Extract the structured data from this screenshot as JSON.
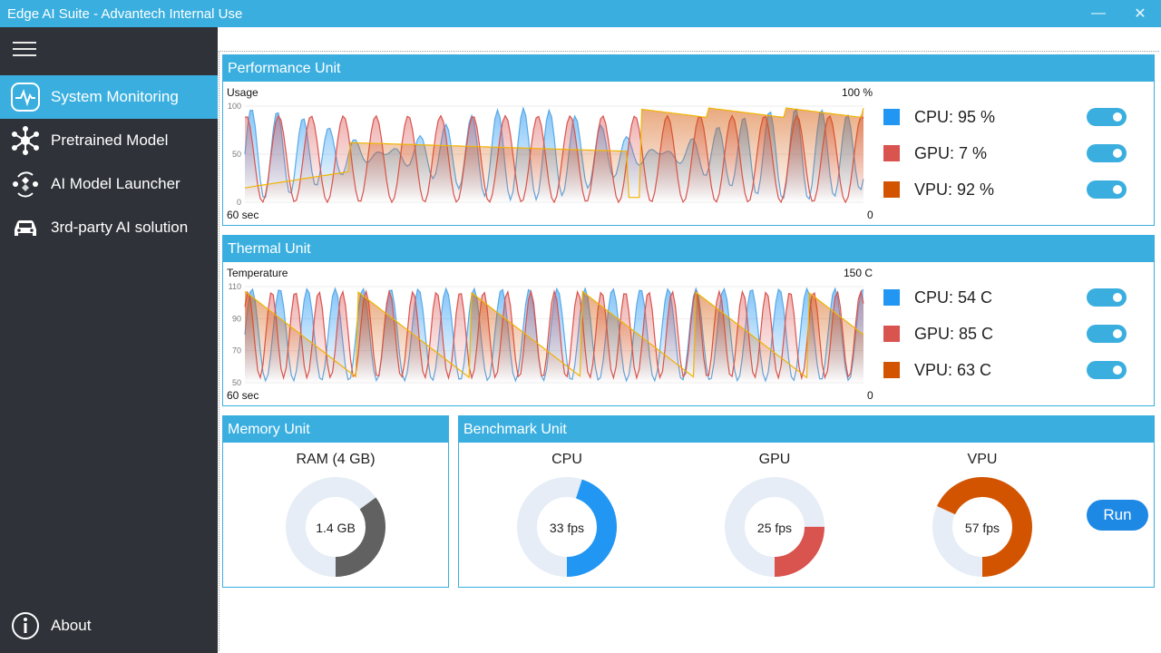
{
  "window": {
    "title": "Edge AI Suite - Advantech Internal Use",
    "minimize": "—",
    "close": "✕"
  },
  "sidebar": {
    "items": [
      {
        "label": "System Monitoring",
        "icon": "pulse-icon",
        "active": true
      },
      {
        "label": "Pretrained Model",
        "icon": "network-icon",
        "active": false
      },
      {
        "label": "AI Model Launcher",
        "icon": "launcher-icon",
        "active": false
      },
      {
        "label": "3rd-party AI solution",
        "icon": "car-icon",
        "active": false
      }
    ],
    "about": {
      "label": "About",
      "icon": "info-icon"
    }
  },
  "performance": {
    "title": "Performance Unit",
    "ylabel": "Usage",
    "ymax_label": "100 %",
    "xstart": "60 sec",
    "xend": "0",
    "ticks": [
      "100",
      "50",
      "0"
    ],
    "legend": [
      {
        "label": "CPU: 95 %",
        "color": "#2196f3",
        "enabled": true
      },
      {
        "label": "GPU: 7 %",
        "color": "#d9534f",
        "enabled": true
      },
      {
        "label": "VPU: 92 %",
        "color": "#d35400",
        "enabled": true
      }
    ]
  },
  "thermal": {
    "title": "Thermal Unit",
    "ylabel": "Temperature",
    "ymax_label": "150 C",
    "xstart": "60 sec",
    "xend": "0",
    "ticks": [
      "110",
      "90",
      "70",
      "50"
    ],
    "legend": [
      {
        "label": "CPU: 54 C",
        "color": "#2196f3",
        "enabled": true
      },
      {
        "label": "GPU: 85 C",
        "color": "#d9534f",
        "enabled": true
      },
      {
        "label": "VPU: 63 C",
        "color": "#d35400",
        "enabled": true
      }
    ]
  },
  "memory": {
    "title": "Memory Unit",
    "label": "RAM (4 GB)",
    "value": "1.4 GB",
    "fraction": 0.35,
    "color": "#616161"
  },
  "benchmark": {
    "title": "Benchmark Unit",
    "run_label": "Run",
    "gauges": [
      {
        "label": "CPU",
        "value": "33 fps",
        "fraction": 0.45,
        "color": "#2196f3"
      },
      {
        "label": "GPU",
        "value": "25 fps",
        "fraction": 0.25,
        "color": "#d9534f"
      },
      {
        "label": "VPU",
        "value": "57 fps",
        "fraction": 0.68,
        "color": "#d35400"
      }
    ]
  }
}
